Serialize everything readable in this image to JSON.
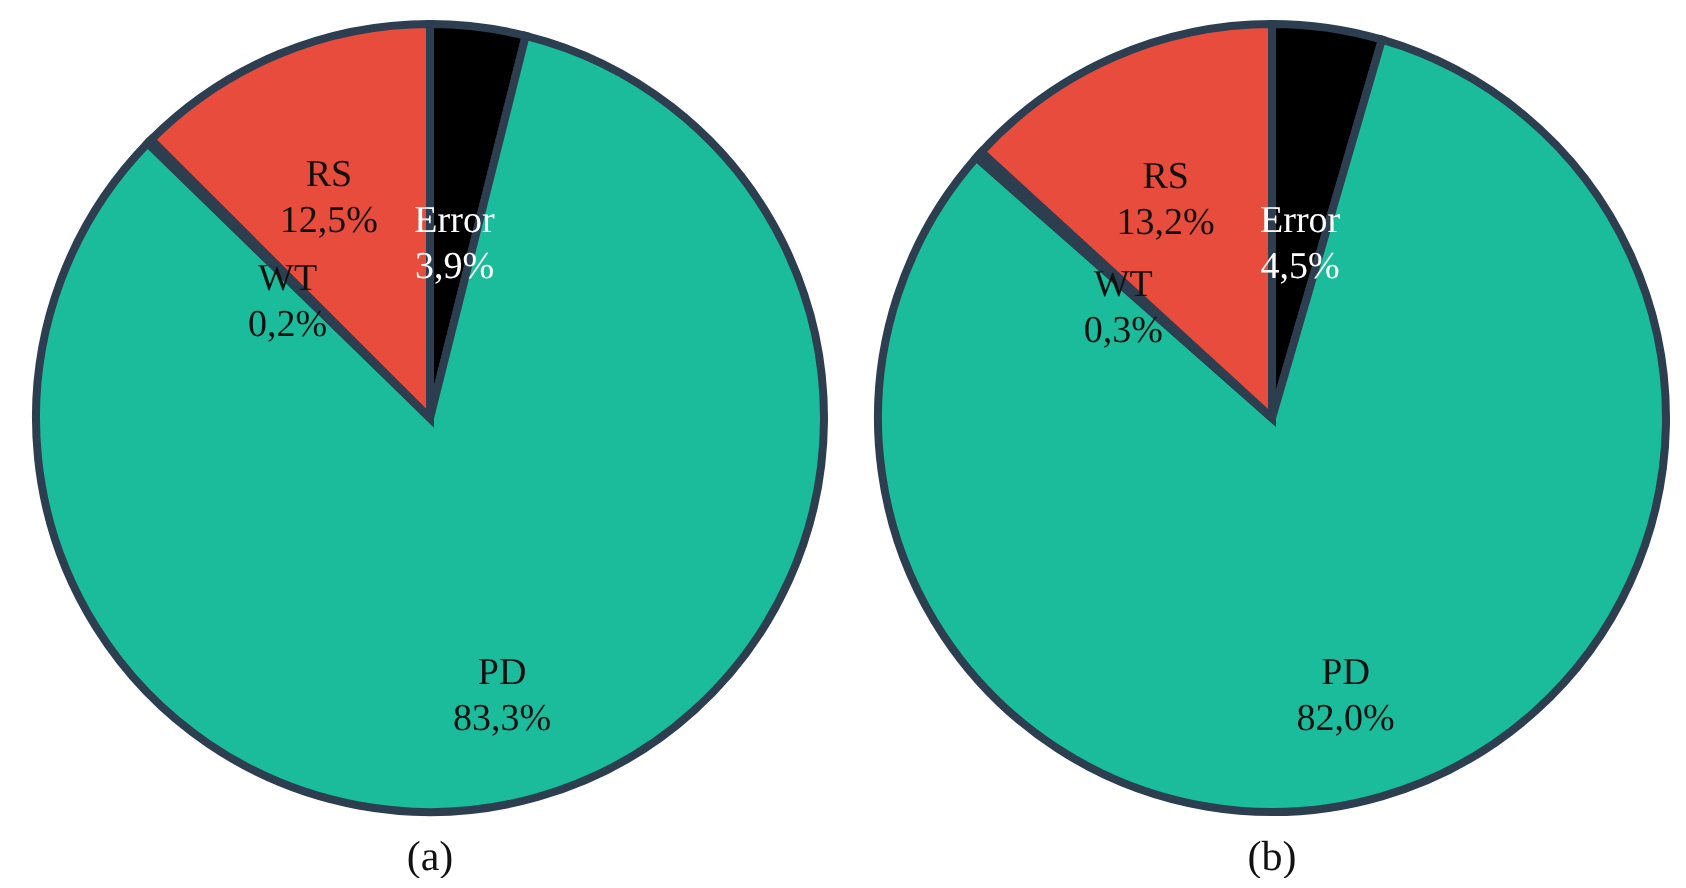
{
  "chart_data": [
    {
      "type": "pie",
      "title": "(a)",
      "categories": [
        "Error",
        "PD",
        "WT",
        "RS"
      ],
      "values": [
        3.9,
        83.3,
        0.2,
        12.5
      ],
      "value_labels": [
        "3,9%",
        "83,3%",
        "0,2%",
        "12,5%"
      ],
      "colors": [
        "#000000",
        "#1abc9c",
        "#2c3e50",
        "#e74c3c"
      ]
    },
    {
      "type": "pie",
      "title": "(b)",
      "categories": [
        "Error",
        "PD",
        "WT",
        "RS"
      ],
      "values": [
        4.5,
        82.0,
        0.3,
        13.2
      ],
      "value_labels": [
        "4,5%",
        "82,0%",
        "0,3%",
        "13,2%"
      ],
      "colors": [
        "#000000",
        "#1abc9c",
        "#2c3e50",
        "#e74c3c"
      ]
    }
  ]
}
